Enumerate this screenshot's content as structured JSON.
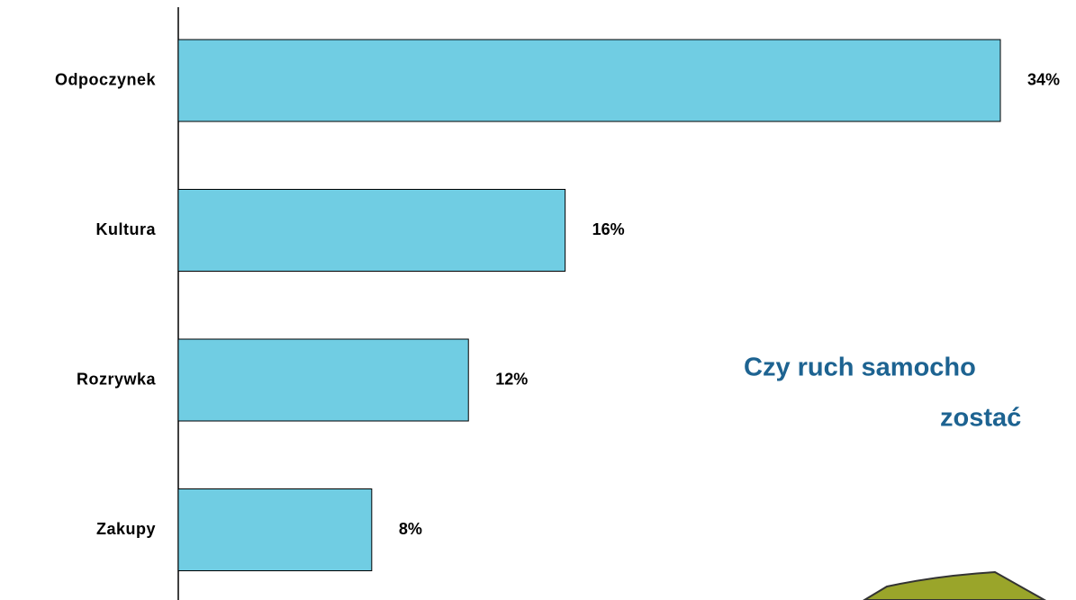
{
  "chart_data": {
    "type": "bar",
    "orientation": "horizontal",
    "categories": [
      "Odpoczynek",
      "Kultura",
      "Rozrywka",
      "Zakupy"
    ],
    "values": [
      34,
      16,
      12,
      8
    ],
    "value_labels": [
      "34%",
      "16%",
      "12%",
      "8%"
    ],
    "color": "#70cde3",
    "annotation": [
      "Czy ruch samocho",
      "zostać"
    ]
  }
}
